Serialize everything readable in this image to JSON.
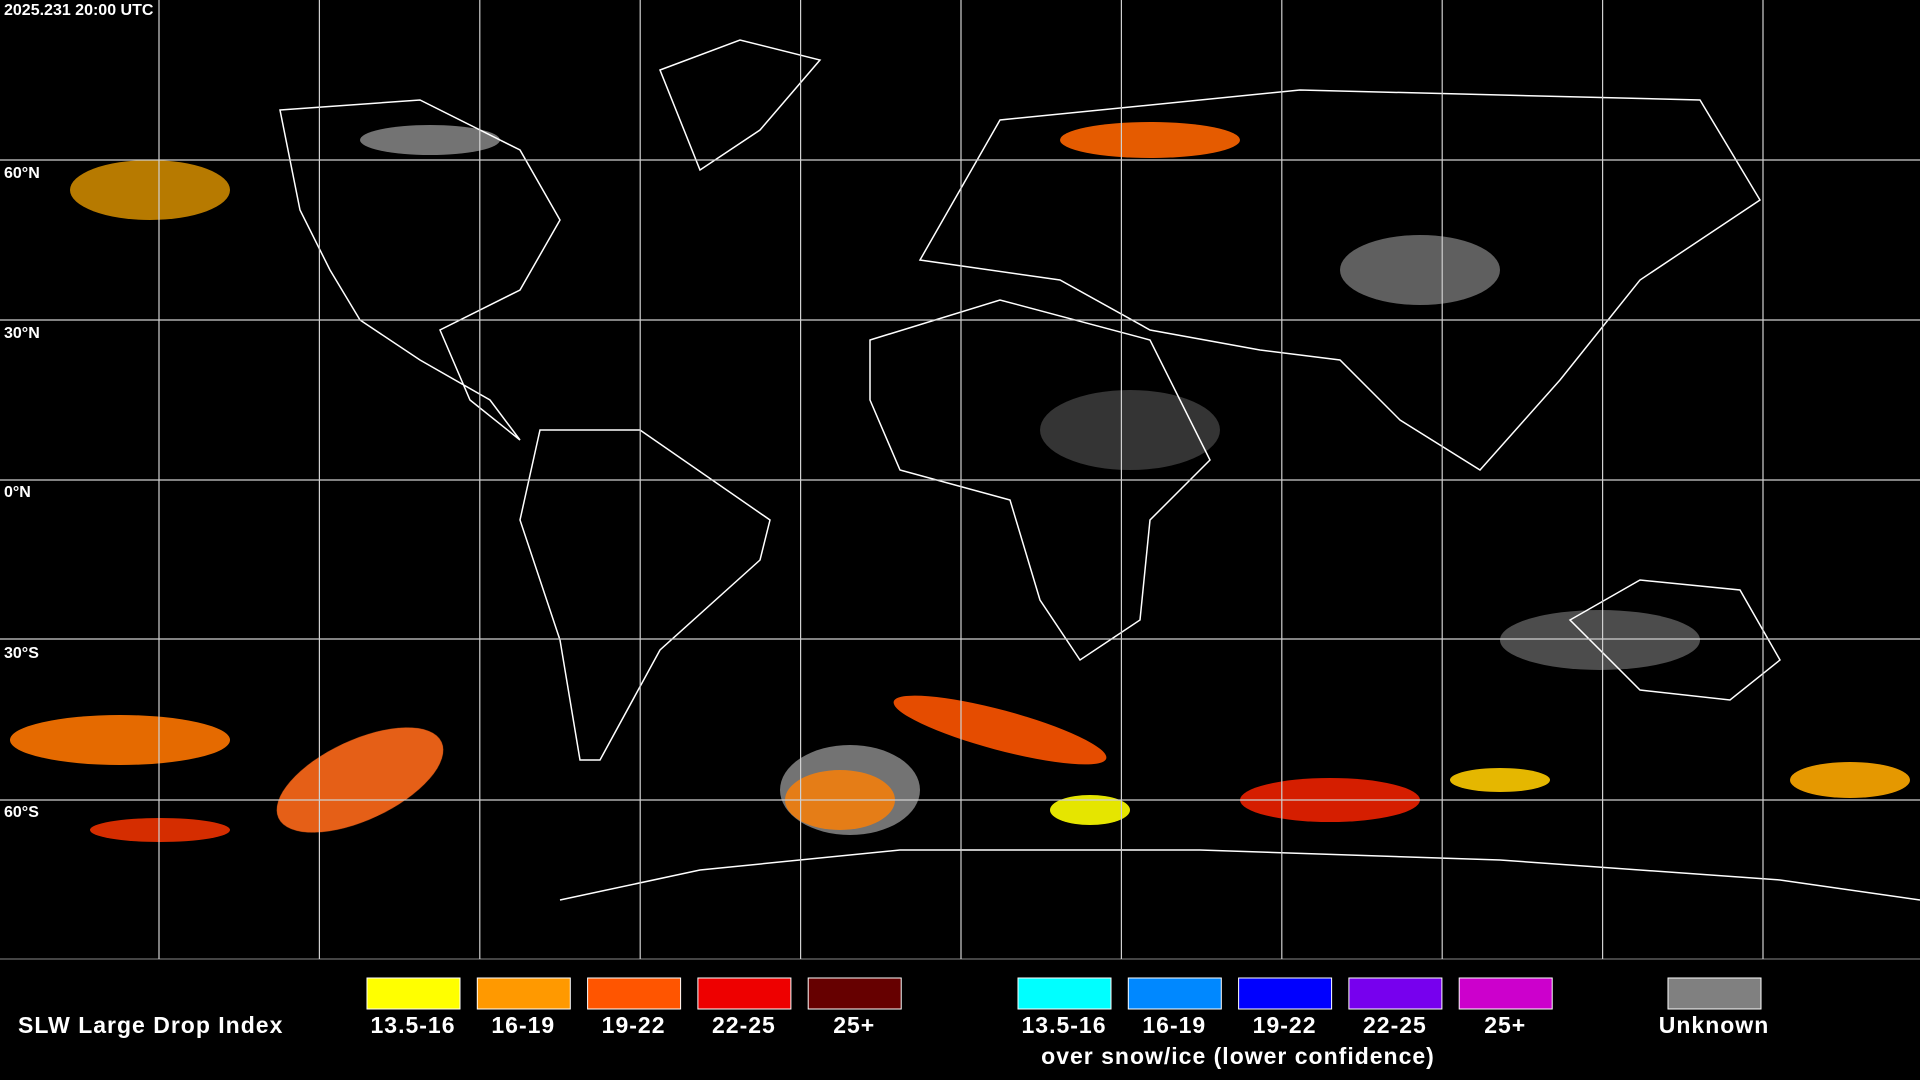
{
  "timestamp": "2025.231 20:00 UTC",
  "latitude_labels": [
    "60°N",
    "30°N",
    "0°N",
    "30°S",
    "60°S"
  ],
  "legend": {
    "title": "SLW Large Drop Index",
    "liquid": [
      {
        "label": "13.5-16",
        "color": "#ffff00"
      },
      {
        "label": "16-19",
        "color": "#ff9900"
      },
      {
        "label": "19-22",
        "color": "#ff5500"
      },
      {
        "label": "22-25",
        "color": "#ee0000"
      },
      {
        "label": "25+",
        "color": "#660000"
      }
    ],
    "snow_ice": [
      {
        "label": "13.5-16",
        "color": "#00ffff"
      },
      {
        "label": "16-19",
        "color": "#0088ff"
      },
      {
        "label": "19-22",
        "color": "#0000ff"
      },
      {
        "label": "22-25",
        "color": "#7700ee"
      },
      {
        "label": "25+",
        "color": "#cc00cc"
      }
    ],
    "snow_ice_caption": "over snow/ice (lower confidence)",
    "unknown": {
      "label": "Unknown",
      "color": "#808080"
    }
  }
}
